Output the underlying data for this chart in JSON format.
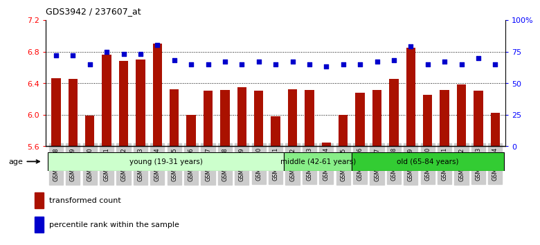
{
  "title": "GDS3942 / 237607_at",
  "samples": [
    "GSM812988",
    "GSM812989",
    "GSM812990",
    "GSM812991",
    "GSM812992",
    "GSM812993",
    "GSM812994",
    "GSM812995",
    "GSM812996",
    "GSM812997",
    "GSM812998",
    "GSM812999",
    "GSM813000",
    "GSM813001",
    "GSM813002",
    "GSM813003",
    "GSM813004",
    "GSM813005",
    "GSM813006",
    "GSM813007",
    "GSM813008",
    "GSM813009",
    "GSM813010",
    "GSM813011",
    "GSM813012",
    "GSM813013",
    "GSM813014"
  ],
  "bar_values": [
    6.46,
    6.45,
    5.99,
    6.76,
    6.68,
    6.7,
    6.9,
    6.32,
    6.0,
    6.3,
    6.31,
    6.35,
    6.3,
    5.98,
    6.32,
    6.31,
    5.65,
    6.0,
    6.28,
    6.31,
    6.45,
    6.85,
    6.25,
    6.31,
    6.38,
    6.3,
    6.02
  ],
  "percentile_values": [
    72,
    72,
    65,
    75,
    73,
    73,
    80,
    68,
    65,
    65,
    67,
    65,
    67,
    65,
    67,
    65,
    63,
    65,
    65,
    67,
    68,
    79,
    65,
    67,
    65,
    70,
    65
  ],
  "ylim": [
    5.6,
    7.2
  ],
  "y2lim": [
    0,
    100
  ],
  "yticks": [
    5.6,
    6.0,
    6.4,
    6.8,
    7.2
  ],
  "y2ticks": [
    0,
    25,
    50,
    75,
    100
  ],
  "y2ticklabels": [
    "0",
    "25",
    "50",
    "75",
    "100%"
  ],
  "bar_color": "#aa1100",
  "percentile_color": "#0000cc",
  "groups": [
    {
      "label": "young (19-31 years)",
      "start": 0,
      "end": 14,
      "color": "#ccffcc"
    },
    {
      "label": "middle (42-61 years)",
      "start": 14,
      "end": 18,
      "color": "#88ee88"
    },
    {
      "label": "old (65-84 years)",
      "start": 18,
      "end": 27,
      "color": "#33cc33"
    }
  ],
  "age_label": "age",
  "legend_bar_label": "transformed count",
  "legend_pct_label": "percentile rank within the sample",
  "bar_bottom": 5.6,
  "xtick_bg": "#cccccc"
}
